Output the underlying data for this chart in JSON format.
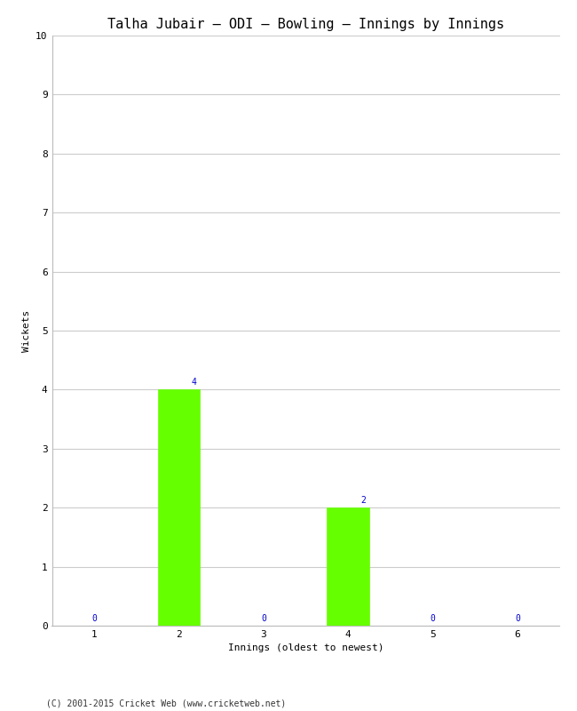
{
  "title": "Talha Jubair – ODI – Bowling – Innings by Innings",
  "xlabel": "Innings (oldest to newest)",
  "ylabel": "Wickets",
  "categories": [
    1,
    2,
    3,
    4,
    5,
    6
  ],
  "values": [
    0,
    4,
    0,
    2,
    0,
    0
  ],
  "bar_color": "#66ff00",
  "bar_edge_color": "#66ff00",
  "annotation_color": "#0000cc",
  "background_color": "#ffffff",
  "ylim": [
    0,
    10
  ],
  "yticks": [
    0,
    1,
    2,
    3,
    4,
    5,
    6,
    7,
    8,
    9,
    10
  ],
  "grid_color": "#cccccc",
  "title_fontsize": 11,
  "axis_label_fontsize": 8,
  "tick_fontsize": 8,
  "annotation_fontsize": 7,
  "footer": "(C) 2001-2015 Cricket Web (www.cricketweb.net)",
  "footer_fontsize": 7
}
